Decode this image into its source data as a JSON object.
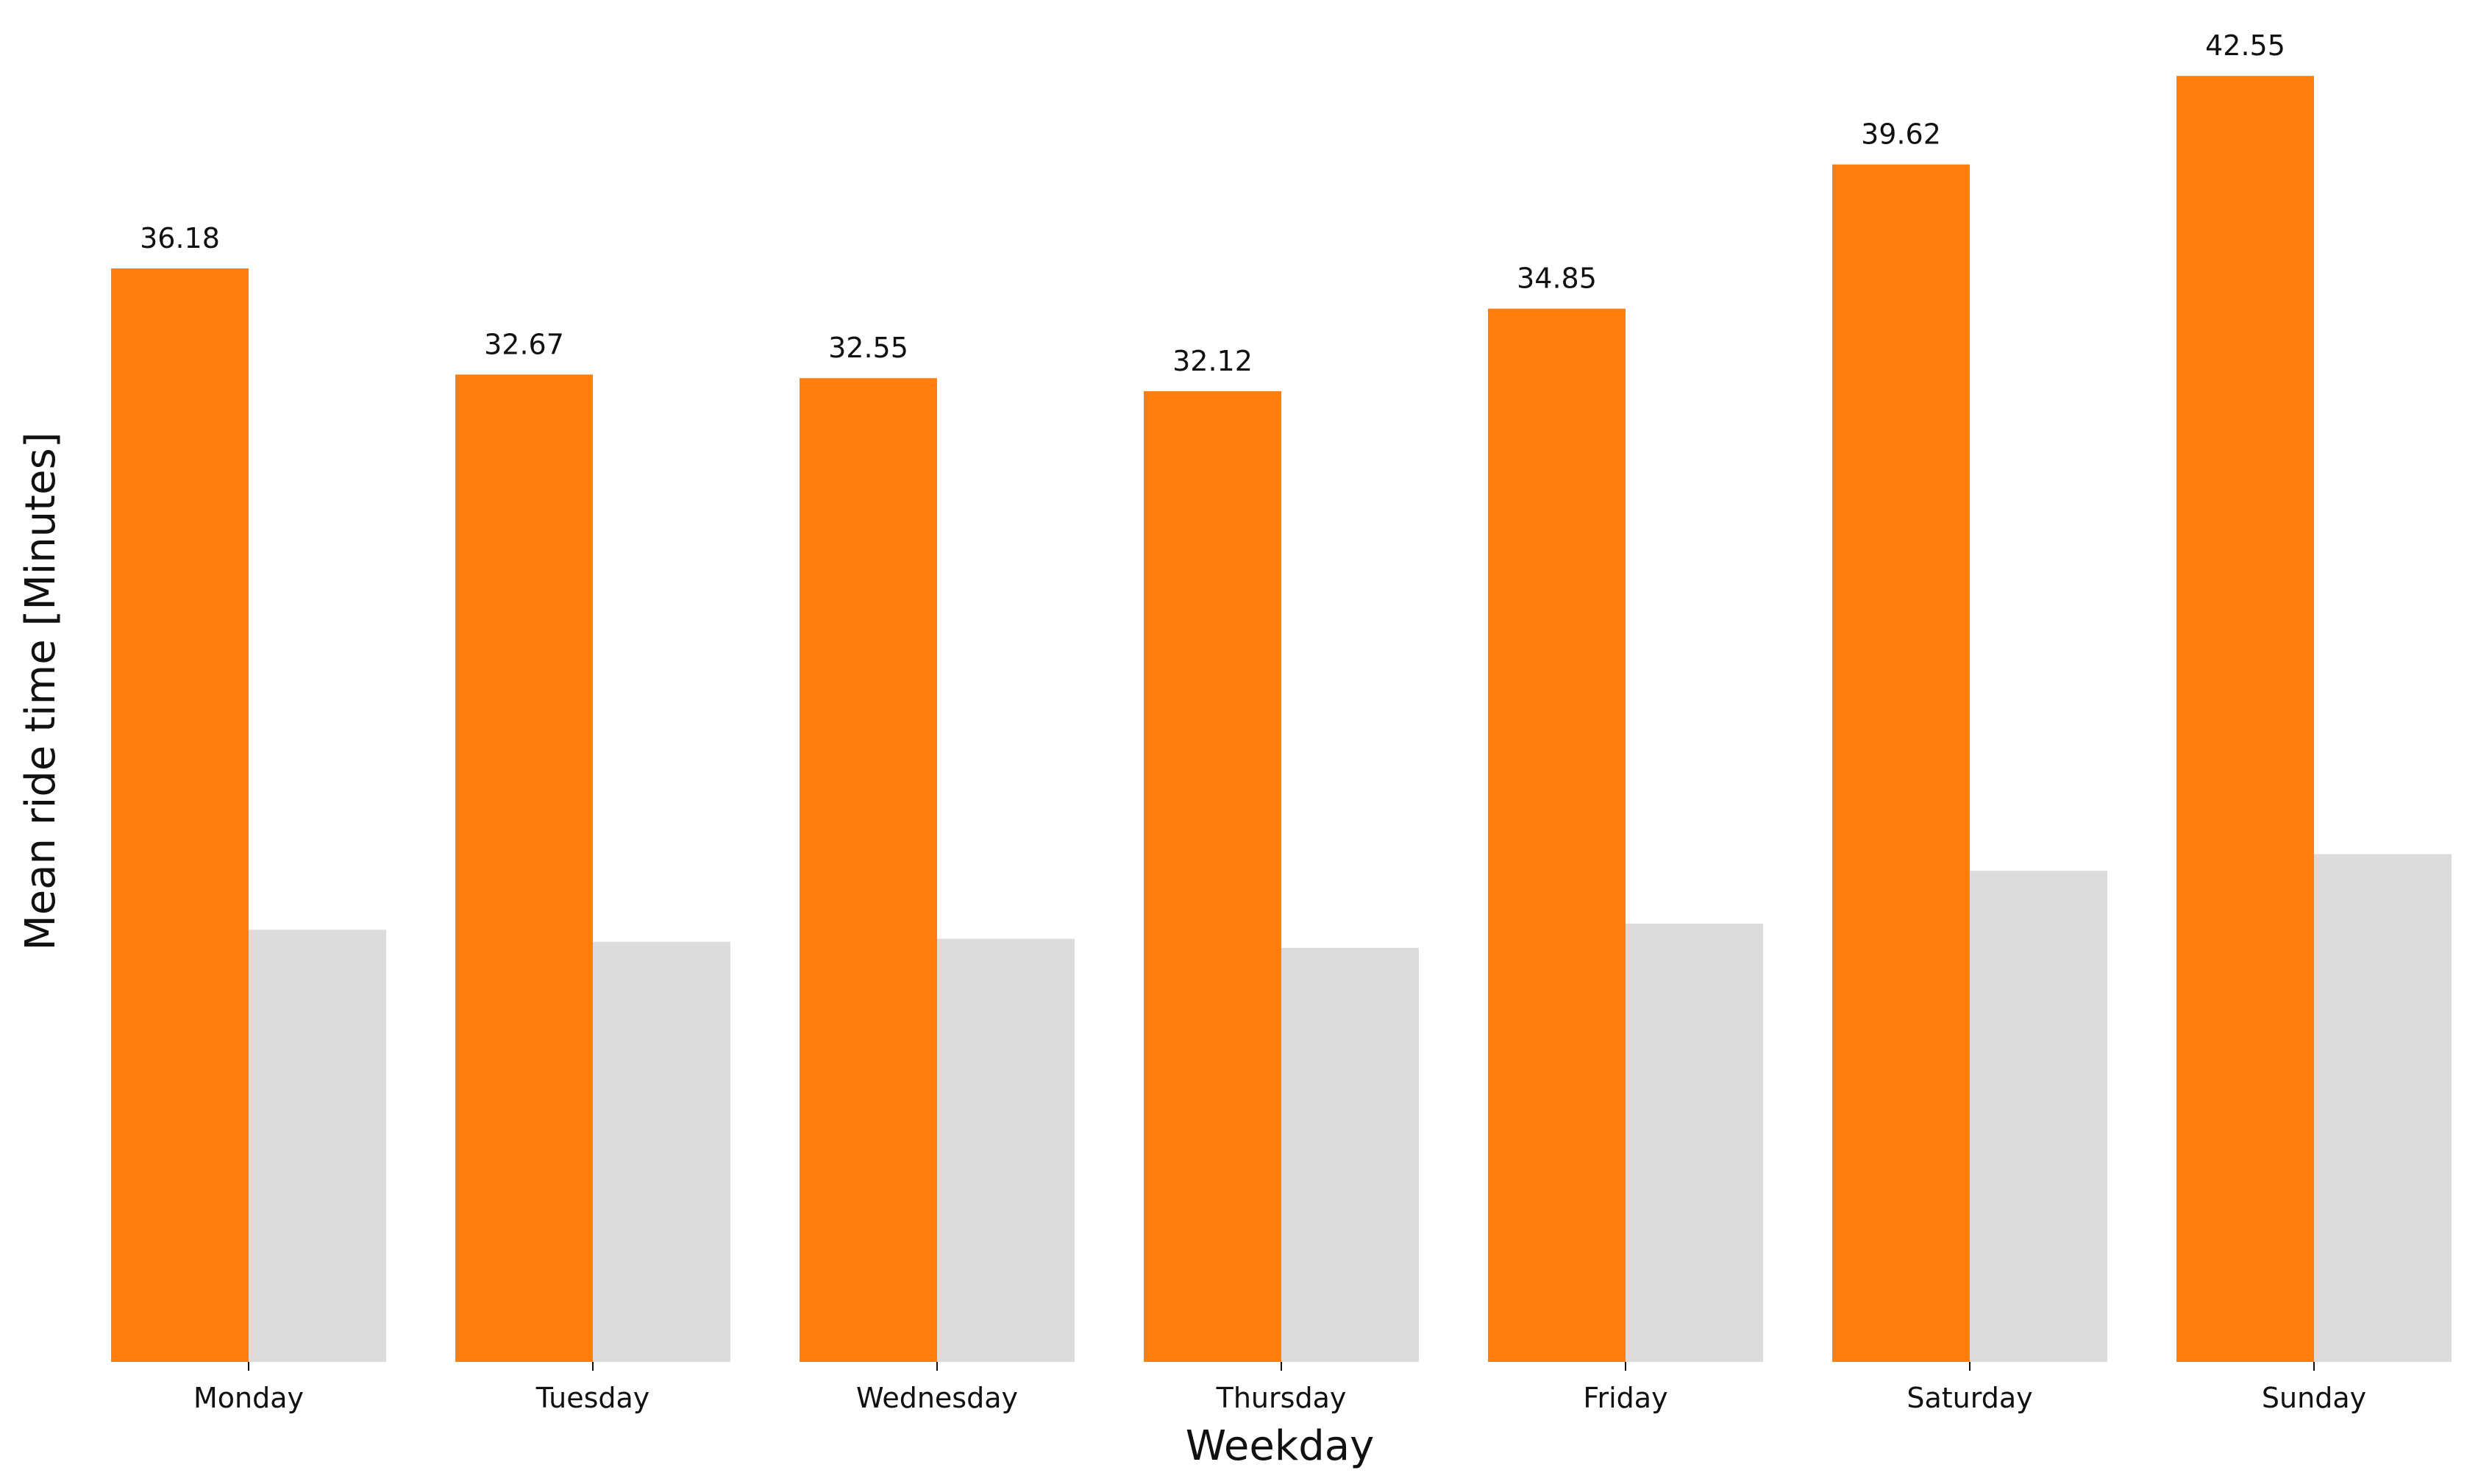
{
  "chart_data": {
    "type": "bar",
    "title": "",
    "xlabel": "Weekday",
    "ylabel": "Mean ride time [Minutes]",
    "categories": [
      "Monday",
      "Tuesday",
      "Wednesday",
      "Thursday",
      "Friday",
      "Saturday",
      "Sunday"
    ],
    "ylim": [
      0,
      45
    ],
    "grid": false,
    "legend": "none",
    "series": [
      {
        "values": [
          36.18,
          32.67,
          32.55,
          32.12,
          34.85,
          39.62,
          42.55
        ],
        "color": "#ff7f0e",
        "labels": [
          "36.18",
          "32.67",
          "32.55",
          "32.12",
          "34.85",
          "39.62",
          "42.55"
        ]
      },
      {
        "values": [
          14.3,
          13.9,
          14.0,
          13.7,
          14.5,
          16.25,
          16.8
        ],
        "color": "#dcdcdc"
      }
    ]
  }
}
